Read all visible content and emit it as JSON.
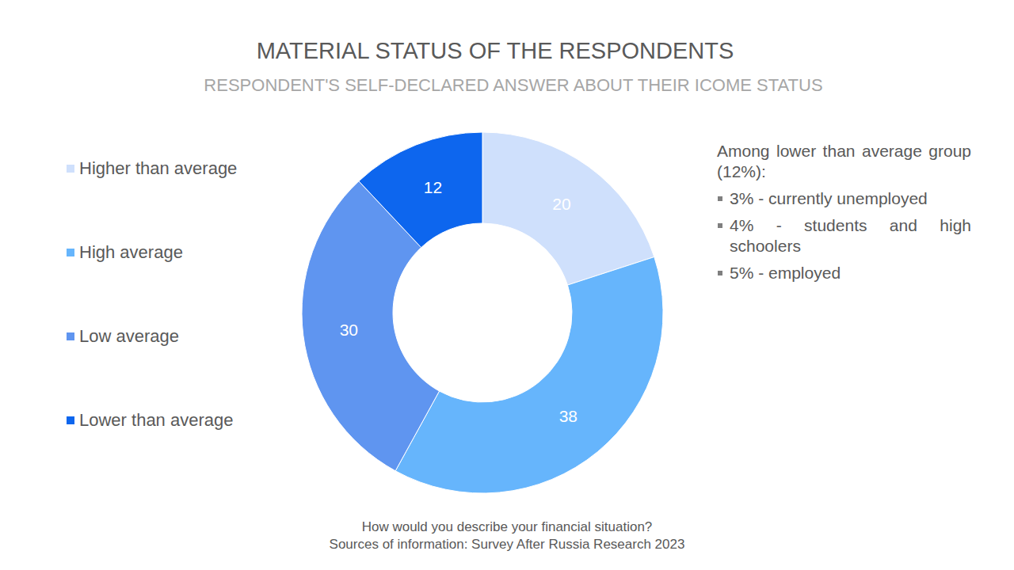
{
  "chart_data": {
    "type": "pie",
    "title": "MATERIAL STATUS OF THE RESPONDENTS",
    "subtitle": "RESPONDENT'S SELF-DECLARED ANSWER ABOUT THEIR ICOME STATUS",
    "categories": [
      "Higher than average",
      "High average",
      "Low average",
      "Lower than average"
    ],
    "values": [
      20,
      38,
      30,
      12
    ],
    "colors": [
      "#cfe0fc",
      "#66b5fc",
      "#5f95f0",
      "#0d66ee"
    ],
    "data_labels": true,
    "legend": "left",
    "annotations": {
      "title": "Among lower than average group (12%):",
      "items": [
        "3% - currently unemployed",
        "4% - students and high schoolers",
        "5% - employed"
      ]
    },
    "caption": [
      "How would you describe your financial situation?",
      "Sources of information: Survey After Russia Research 2023"
    ]
  }
}
